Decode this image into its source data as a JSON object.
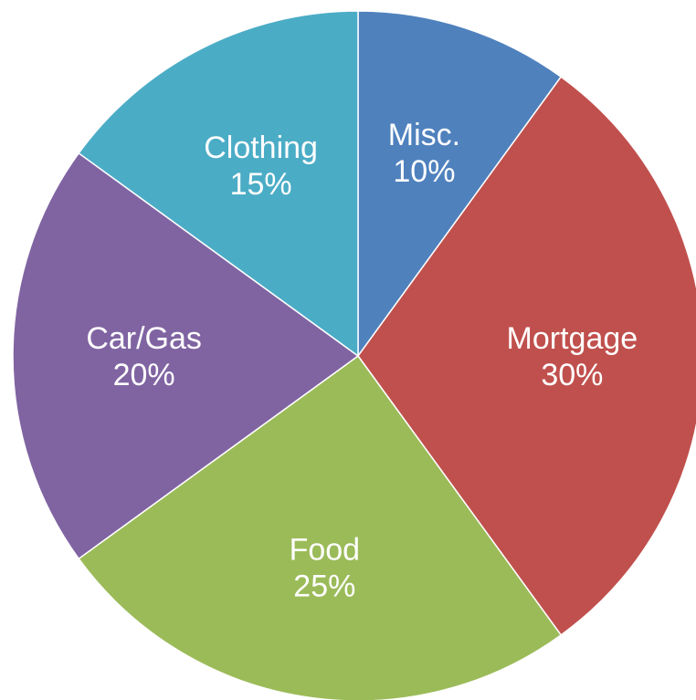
{
  "chart_data": {
    "type": "pie",
    "title": "",
    "start_angle_deg": 0,
    "direction": "clockwise",
    "slices": [
      {
        "name": "Misc.",
        "value": 10,
        "label": "10%",
        "color": "#4F81BD"
      },
      {
        "name": "Mortgage",
        "value": 30,
        "label": "30%",
        "color": "#C0504D"
      },
      {
        "name": "Food",
        "value": 25,
        "label": "25%",
        "color": "#9BBB59"
      },
      {
        "name": "Car/Gas",
        "value": 20,
        "label": "20%",
        "color": "#8064A2"
      },
      {
        "name": "Clothing",
        "value": 15,
        "label": "15%",
        "color": "#4BACC6"
      }
    ]
  }
}
